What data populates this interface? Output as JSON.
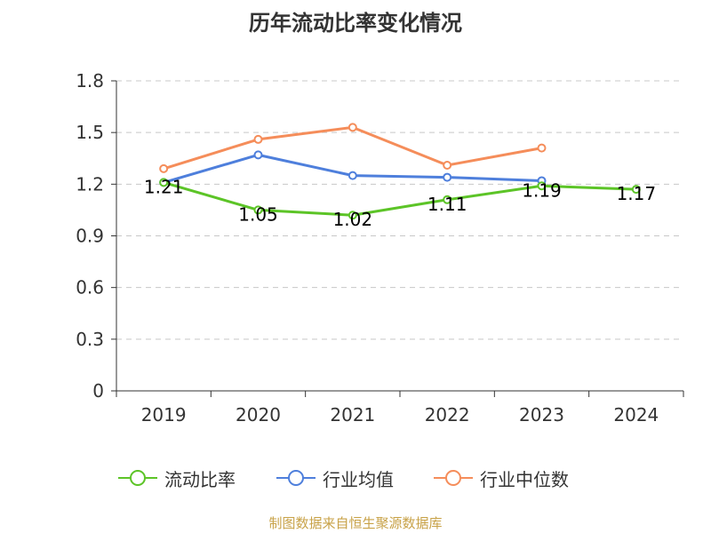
{
  "chart_data": {
    "type": "line",
    "title": "历年流动比率变化情况",
    "categories": [
      "2019",
      "2020",
      "2021",
      "2022",
      "2023",
      "2024"
    ],
    "ylim": [
      0,
      1.8
    ],
    "yticks": [
      0,
      0.3,
      0.6,
      0.9,
      1.2,
      1.5,
      1.8
    ],
    "ytick_labels": [
      "0",
      "0.3",
      "0.6",
      "0.9",
      "1.2",
      "1.5",
      "1.8"
    ],
    "grid": true,
    "legend_position": "bottom-center",
    "series": [
      {
        "name": "流动比率",
        "color": "#5cc427",
        "values": [
          1.21,
          1.05,
          1.02,
          1.11,
          1.19,
          1.17
        ],
        "labels": [
          "1.21",
          "1.05",
          "1.02",
          "1.11",
          "1.19",
          "1.17"
        ]
      },
      {
        "name": "行业均值",
        "color": "#4e7fdc",
        "values": [
          1.21,
          1.37,
          1.25,
          1.24,
          1.22,
          null
        ],
        "labels": []
      },
      {
        "name": "行业中位数",
        "color": "#f58d5a",
        "values": [
          1.29,
          1.46,
          1.53,
          1.31,
          1.41,
          null
        ],
        "labels": []
      }
    ]
  },
  "source_note": "制图数据来自恒生聚源数据库"
}
